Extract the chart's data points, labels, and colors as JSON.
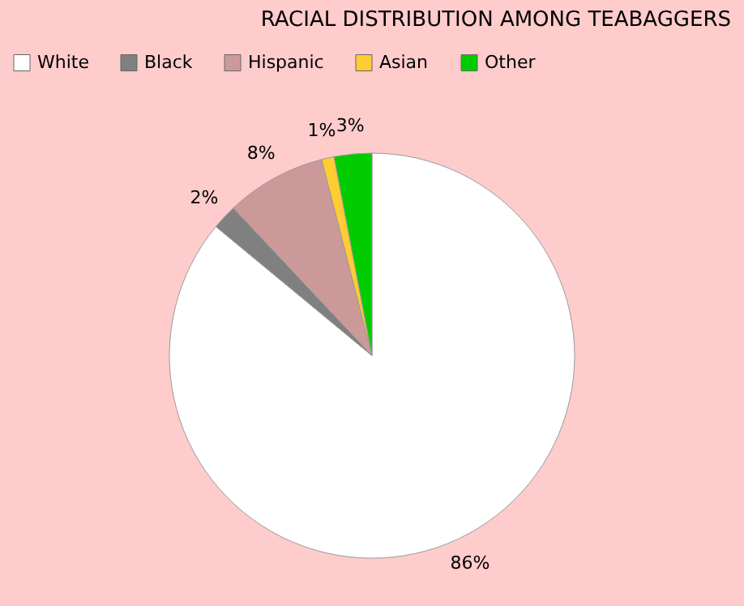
{
  "chart_data": {
    "type": "pie",
    "title": "RACIAL DISTRIBUTION AMONG TEABAGGERS",
    "categories": [
      "White",
      "Black",
      "Hispanic",
      "Asian",
      "Other"
    ],
    "values": [
      86,
      2,
      8,
      1,
      3
    ],
    "colors": [
      "#ffffff",
      "#808080",
      "#cc9999",
      "#ffcc33",
      "#00cc00"
    ],
    "value_labels": [
      "86%",
      "2%",
      "8%",
      "1%",
      "3%"
    ],
    "legend": "top left"
  }
}
